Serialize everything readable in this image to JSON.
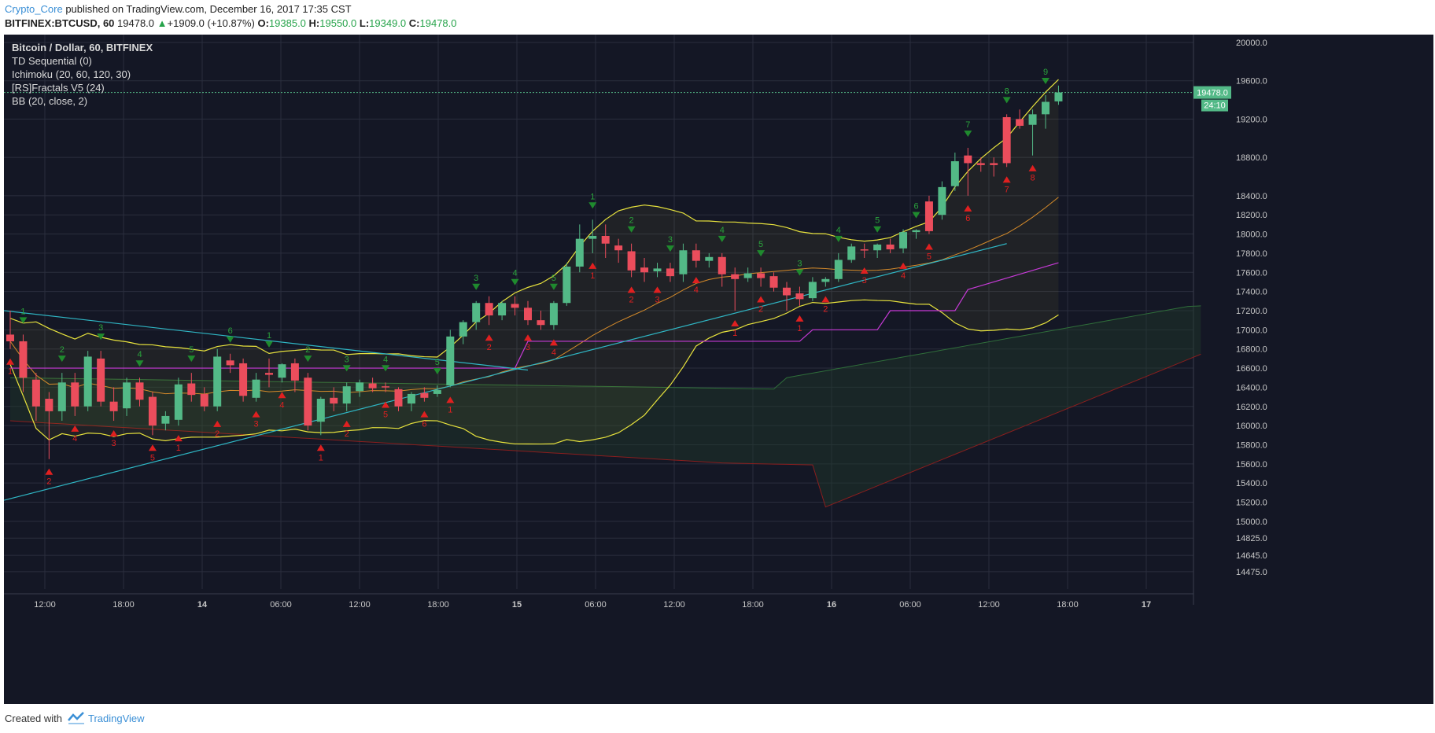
{
  "header": {
    "author": "Crypto_Core",
    "published": " published on TradingView.com, December 16, 2017 17:35 CST",
    "symbol": "BITFINEX:BTCUSD, 60",
    "last": "19478.0",
    "change": "+1909.0 (+10.87%)",
    "o_label": "O:",
    "o": "19385.0",
    "h_label": "H:",
    "h": "19550.0",
    "l_label": "L:",
    "l": "19349.0",
    "c_label": "C:",
    "c": "19478.0"
  },
  "legend": {
    "title": "Bitcoin / Dollar, 60, BITFINEX",
    "indicators": [
      "TD Sequential (0)",
      "Ichimoku (20, 60, 120, 30)",
      "[RS]Fractals V5 (24)",
      "BB (20, close, 2)"
    ]
  },
  "footer": {
    "created": "Created with",
    "brand": "TradingView"
  },
  "colors": {
    "background": "#141725",
    "up": "#53b987",
    "down": "#eb4d5c",
    "grid": "#2a2e3d",
    "bb": "#e8e33d",
    "magenta": "#c63ad6",
    "cyan": "#2fb6c4",
    "cloud_fill": "#1f3a2a"
  },
  "chart_data": {
    "type": "candlestick",
    "title": "Bitcoin / Dollar, 60, BITFINEX",
    "ylim": [
      14375,
      20000
    ],
    "y_ticks": [
      "20000.0",
      "19600.0",
      "19200.0",
      "18800.0",
      "18400.0",
      "18200.0",
      "18000.0",
      "17800.0",
      "17600.0",
      "17400.0",
      "17200.0",
      "17000.0",
      "16800.0",
      "16600.0",
      "16400.0",
      "16200.0",
      "16000.0",
      "15800.0",
      "15600.0",
      "15400.0",
      "15200.0",
      "15000.0",
      "14825.0",
      "14645.0",
      "14475.0"
    ],
    "x_ticks": [
      "12:00",
      "18:00",
      "14",
      "06:00",
      "12:00",
      "18:00",
      "15",
      "06:00",
      "12:00",
      "18:00",
      "16",
      "06:00",
      "12:00",
      "18:00",
      "17"
    ],
    "bold_x_ticks": [
      "14",
      "15",
      "16",
      "17"
    ],
    "last_price_label": "19478.0",
    "countdown_label": "24:10",
    "candles": [
      {
        "o": 16950,
        "h": 17200,
        "c": 16880,
        "l": 16800
      },
      {
        "o": 16880,
        "h": 16950,
        "c": 16500,
        "l": 16350
      },
      {
        "o": 16480,
        "h": 16550,
        "c": 16200,
        "l": 16050
      },
      {
        "o": 16280,
        "h": 16350,
        "c": 16150,
        "l": 15650
      },
      {
        "o": 16150,
        "h": 16550,
        "c": 16450,
        "l": 16050
      },
      {
        "o": 16450,
        "h": 16550,
        "c": 16200,
        "l": 16100
      },
      {
        "o": 16200,
        "h": 16780,
        "c": 16720,
        "l": 16150
      },
      {
        "o": 16700,
        "h": 16780,
        "c": 16250,
        "l": 16200
      },
      {
        "o": 16250,
        "h": 16400,
        "c": 16150,
        "l": 16050
      },
      {
        "o": 16180,
        "h": 16500,
        "c": 16450,
        "l": 16100
      },
      {
        "o": 16450,
        "h": 16500,
        "c": 16270,
        "l": 16200
      },
      {
        "o": 16300,
        "h": 16350,
        "c": 16000,
        "l": 15900
      },
      {
        "o": 16020,
        "h": 16150,
        "c": 16100,
        "l": 15950
      },
      {
        "o": 16060,
        "h": 16500,
        "c": 16430,
        "l": 16000
      },
      {
        "o": 16440,
        "h": 16550,
        "c": 16320,
        "l": 16250
      },
      {
        "o": 16330,
        "h": 16400,
        "c": 16200,
        "l": 16150
      },
      {
        "o": 16200,
        "h": 16800,
        "c": 16720,
        "l": 16150
      },
      {
        "o": 16680,
        "h": 16750,
        "c": 16630,
        "l": 16550
      },
      {
        "o": 16650,
        "h": 16700,
        "c": 16310,
        "l": 16250
      },
      {
        "o": 16290,
        "h": 16550,
        "c": 16480,
        "l": 16250
      },
      {
        "o": 16550,
        "h": 16700,
        "c": 16530,
        "l": 16400
      },
      {
        "o": 16500,
        "h": 16650,
        "c": 16640,
        "l": 16450
      },
      {
        "o": 16650,
        "h": 16700,
        "c": 16470,
        "l": 16350
      },
      {
        "o": 16500,
        "h": 16550,
        "c": 16000,
        "l": 15950
      },
      {
        "o": 16040,
        "h": 16300,
        "c": 16280,
        "l": 15900
      },
      {
        "o": 16290,
        "h": 16400,
        "c": 16230,
        "l": 16150
      },
      {
        "o": 16230,
        "h": 16450,
        "c": 16410,
        "l": 16150
      },
      {
        "o": 16360,
        "h": 16480,
        "c": 16450,
        "l": 16300
      },
      {
        "o": 16440,
        "h": 16500,
        "c": 16390,
        "l": 16350
      },
      {
        "o": 16410,
        "h": 16450,
        "c": 16400,
        "l": 16350
      },
      {
        "o": 16380,
        "h": 16400,
        "c": 16200,
        "l": 16150
      },
      {
        "o": 16230,
        "h": 16350,
        "c": 16330,
        "l": 16150
      },
      {
        "o": 16340,
        "h": 16400,
        "c": 16290,
        "l": 16250
      },
      {
        "o": 16330,
        "h": 16420,
        "c": 16370,
        "l": 16300
      },
      {
        "o": 16420,
        "h": 17000,
        "c": 16930,
        "l": 16400
      },
      {
        "o": 16930,
        "h": 17100,
        "c": 17080,
        "l": 16850
      },
      {
        "o": 17080,
        "h": 17300,
        "c": 17280,
        "l": 17000
      },
      {
        "o": 17280,
        "h": 17350,
        "c": 17150,
        "l": 17050
      },
      {
        "o": 17150,
        "h": 17300,
        "c": 17280,
        "l": 17100
      },
      {
        "o": 17270,
        "h": 17350,
        "c": 17230,
        "l": 17150
      },
      {
        "o": 17230,
        "h": 17300,
        "c": 17100,
        "l": 17050
      },
      {
        "o": 17100,
        "h": 17200,
        "c": 17050,
        "l": 17000
      },
      {
        "o": 17050,
        "h": 17300,
        "c": 17280,
        "l": 17000
      },
      {
        "o": 17280,
        "h": 17700,
        "c": 17660,
        "l": 17250
      },
      {
        "o": 17660,
        "h": 18100,
        "c": 17950,
        "l": 17600
      },
      {
        "o": 17950,
        "h": 18150,
        "c": 17980,
        "l": 17800
      },
      {
        "o": 17980,
        "h": 18100,
        "c": 17900,
        "l": 17750
      },
      {
        "o": 17880,
        "h": 17950,
        "c": 17830,
        "l": 17700
      },
      {
        "o": 17820,
        "h": 17900,
        "c": 17620,
        "l": 17550
      },
      {
        "o": 17650,
        "h": 17750,
        "c": 17600,
        "l": 17500
      },
      {
        "o": 17610,
        "h": 17700,
        "c": 17640,
        "l": 17550
      },
      {
        "o": 17640,
        "h": 17700,
        "c": 17560,
        "l": 17500
      },
      {
        "o": 17580,
        "h": 17900,
        "c": 17830,
        "l": 17500
      },
      {
        "o": 17830,
        "h": 17900,
        "c": 17720,
        "l": 17650
      },
      {
        "o": 17720,
        "h": 17800,
        "c": 17760,
        "l": 17650
      },
      {
        "o": 17760,
        "h": 17800,
        "c": 17580,
        "l": 17450
      },
      {
        "o": 17580,
        "h": 17650,
        "c": 17530,
        "l": 17200
      },
      {
        "o": 17540,
        "h": 17650,
        "c": 17590,
        "l": 17500
      },
      {
        "o": 17590,
        "h": 17650,
        "c": 17540,
        "l": 17450
      },
      {
        "o": 17560,
        "h": 17600,
        "c": 17440,
        "l": 17400
      },
      {
        "o": 17440,
        "h": 17500,
        "c": 17360,
        "l": 17200
      },
      {
        "o": 17380,
        "h": 17450,
        "c": 17320,
        "l": 17250
      },
      {
        "o": 17330,
        "h": 17550,
        "c": 17500,
        "l": 17300
      },
      {
        "o": 17500,
        "h": 17550,
        "c": 17530,
        "l": 17450
      },
      {
        "o": 17530,
        "h": 17800,
        "c": 17730,
        "l": 17500
      },
      {
        "o": 17730,
        "h": 17900,
        "c": 17870,
        "l": 17700
      },
      {
        "o": 17840,
        "h": 17900,
        "c": 17830,
        "l": 17750
      },
      {
        "o": 17830,
        "h": 17900,
        "c": 17890,
        "l": 17750
      },
      {
        "o": 17890,
        "h": 17950,
        "c": 17840,
        "l": 17800
      },
      {
        "o": 17850,
        "h": 18050,
        "c": 18020,
        "l": 17800
      },
      {
        "o": 18020,
        "h": 18050,
        "c": 18040,
        "l": 17950
      },
      {
        "o": 18340,
        "h": 18400,
        "c": 18030,
        "l": 18000
      },
      {
        "o": 18200,
        "h": 18550,
        "c": 18490,
        "l": 18150
      },
      {
        "o": 18500,
        "h": 18850,
        "c": 18760,
        "l": 18450
      },
      {
        "o": 18820,
        "h": 18900,
        "c": 18740,
        "l": 18400
      },
      {
        "o": 18740,
        "h": 18800,
        "c": 18720,
        "l": 18650
      },
      {
        "o": 18740,
        "h": 18800,
        "c": 18720,
        "l": 18600
      },
      {
        "o": 19220,
        "h": 19250,
        "c": 18740,
        "l": 18700
      },
      {
        "o": 19200,
        "h": 19300,
        "c": 19130,
        "l": 19100
      },
      {
        "o": 19140,
        "h": 19300,
        "c": 19250,
        "l": 18820
      },
      {
        "o": 19250,
        "h": 19450,
        "c": 19380,
        "l": 19100
      },
      {
        "o": 19385,
        "h": 19550,
        "c": 19478,
        "l": 19349
      }
    ],
    "td_labels_down": [
      1,
      2,
      4,
      3,
      5,
      1,
      2,
      3,
      4,
      1,
      2,
      5,
      6,
      1,
      2,
      3,
      4,
      1,
      2,
      3,
      4,
      1,
      2,
      1,
      2,
      3,
      4,
      5,
      6,
      7,
      8
    ],
    "td_labels_up": [
      1,
      2,
      3,
      4,
      5,
      6,
      1,
      2,
      3,
      4,
      5,
      3,
      4,
      5,
      1,
      2,
      3,
      4,
      5,
      3,
      4,
      5,
      6,
      7,
      8,
      9
    ]
  }
}
